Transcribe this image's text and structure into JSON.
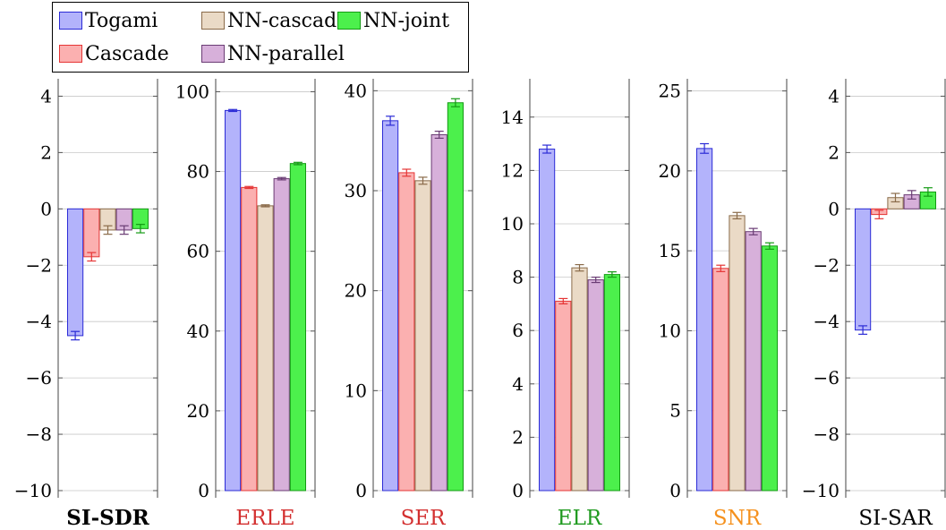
{
  "legend": {
    "items": [
      {
        "name": "Togami",
        "fill": "#b3b3fb",
        "stroke": "#2b2bd6"
      },
      {
        "name": "NN-cascade",
        "fill": "#eadac6",
        "stroke": "#8a6b4a"
      },
      {
        "name": "NN-joint",
        "fill": "#4cf04c",
        "stroke": "#139a13"
      },
      {
        "name": "Cascade",
        "fill": "#fbb0b0",
        "stroke": "#e53535"
      },
      {
        "name": "NN-parallel",
        "fill": "#d7b0da",
        "stroke": "#6a3c74"
      }
    ]
  },
  "chart_data": [
    {
      "type": "bar",
      "title": "SI-SDR",
      "title_color": "#000000",
      "title_bold": true,
      "categories": [
        "Togami",
        "Cascade",
        "NN-cascade",
        "NN-parallel",
        "NN-joint"
      ],
      "values": [
        -4.5,
        -1.7,
        -0.75,
        -0.75,
        -0.7
      ],
      "errors": [
        0.15,
        0.15,
        0.15,
        0.15,
        0.15
      ],
      "ylim": [
        -10,
        4.3
      ],
      "yticks": [
        -10,
        -8,
        -6,
        -4,
        -2,
        0,
        2,
        4
      ],
      "yticklabels": [
        "−10",
        "−8",
        "−6",
        "−4",
        "−2",
        "0",
        "2",
        "4"
      ]
    },
    {
      "type": "bar",
      "title": "ERLE",
      "title_color": "#d32f2f",
      "title_bold": false,
      "categories": [
        "Togami",
        "Cascade",
        "NN-cascade",
        "NN-parallel",
        "NN-joint"
      ],
      "values": [
        95.3,
        76,
        71.4,
        78.2,
        82
      ],
      "errors": [
        0.25,
        0.25,
        0.25,
        0.3,
        0.3
      ],
      "ylim": [
        0,
        101
      ],
      "yticks": [
        0,
        20,
        40,
        60,
        80,
        100
      ],
      "yticklabels": [
        "0",
        "20",
        "40",
        "60",
        "80",
        "100"
      ]
    },
    {
      "type": "bar",
      "title": "SER",
      "title_color": "#d32f2f",
      "title_bold": false,
      "categories": [
        "Togami",
        "Cascade",
        "NN-cascade",
        "NN-parallel",
        "NN-joint"
      ],
      "values": [
        37,
        31.8,
        31,
        35.6,
        38.8
      ],
      "errors": [
        0.45,
        0.35,
        0.35,
        0.35,
        0.4
      ],
      "ylim": [
        0,
        40.3
      ],
      "yticks": [
        0,
        10,
        20,
        30,
        40
      ],
      "yticklabels": [
        "0",
        "10",
        "20",
        "30",
        "40"
      ]
    },
    {
      "type": "bar",
      "title": "ELR",
      "title_color": "#1f9a1f",
      "title_bold": false,
      "categories": [
        "Togami",
        "Cascade",
        "NN-cascade",
        "NN-parallel",
        "NN-joint"
      ],
      "values": [
        12.8,
        7.1,
        8.35,
        7.9,
        8.1
      ],
      "errors": [
        0.15,
        0.1,
        0.12,
        0.1,
        0.1
      ],
      "ylim": [
        0,
        15.1
      ],
      "yticks": [
        0,
        2,
        4,
        6,
        8,
        10,
        12,
        14
      ],
      "yticklabels": [
        "0",
        "2",
        "4",
        "6",
        "8",
        "10",
        "12",
        "14"
      ]
    },
    {
      "type": "bar",
      "title": "SNR",
      "title_color": "#f5911e",
      "title_bold": false,
      "categories": [
        "Togami",
        "Cascade",
        "NN-cascade",
        "NN-parallel",
        "NN-joint"
      ],
      "values": [
        21.4,
        13.9,
        17.2,
        16.2,
        15.3
      ],
      "errors": [
        0.3,
        0.2,
        0.2,
        0.2,
        0.2
      ],
      "ylim": [
        0,
        25.2
      ],
      "yticks": [
        0,
        5,
        10,
        15,
        20,
        25
      ],
      "yticklabels": [
        "0",
        "5",
        "10",
        "15",
        "20",
        "25"
      ]
    },
    {
      "type": "bar",
      "title": "SI-SAR",
      "title_color": "#000000",
      "title_bold": false,
      "categories": [
        "Togami",
        "Cascade",
        "NN-cascade",
        "NN-parallel",
        "NN-joint"
      ],
      "values": [
        -4.3,
        -0.2,
        0.4,
        0.5,
        0.6
      ],
      "errors": [
        0.15,
        0.15,
        0.15,
        0.15,
        0.15
      ],
      "ylim": [
        -10,
        4.3
      ],
      "yticks": [
        -10,
        -8,
        -6,
        -4,
        -2,
        0,
        2,
        4
      ],
      "yticklabels": [
        "−10",
        "−8",
        "−6",
        "−4",
        "−2",
        "0",
        "2",
        "4"
      ]
    }
  ]
}
